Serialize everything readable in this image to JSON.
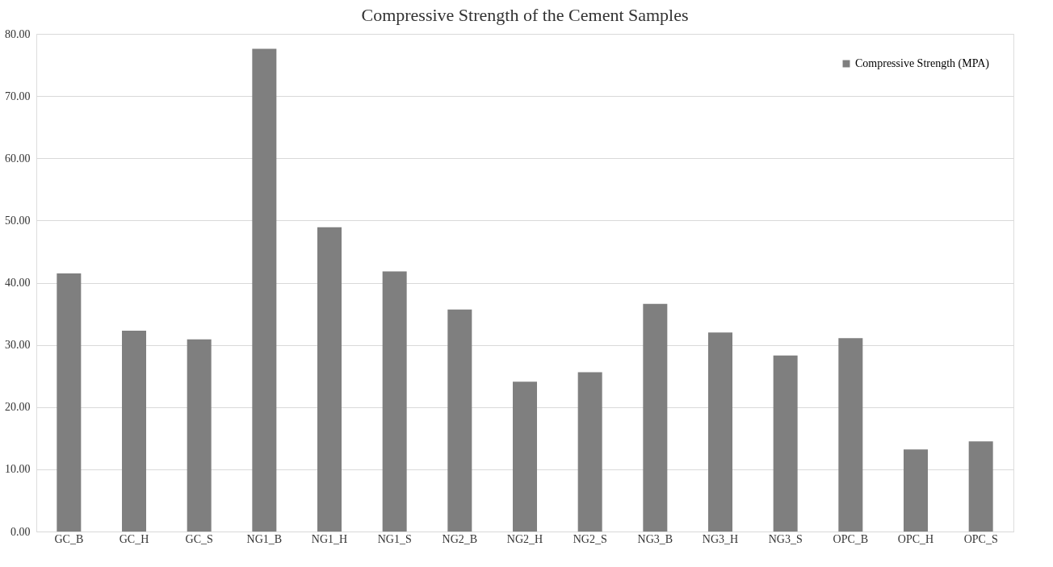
{
  "chart_data": {
    "type": "bar",
    "title": "Compressive Strength of the Cement Samples",
    "categories": [
      "GC_B",
      "GC_H",
      "GC_S",
      "NG1_B",
      "NG1_H",
      "NG1_S",
      "NG2_B",
      "NG2_H",
      "NG2_S",
      "NG3_B",
      "NG3_H",
      "NG3_S",
      "OPC_B",
      "OPC_H",
      "OPC_S"
    ],
    "series": [
      {
        "name": "Compressive Strength (MPA)",
        "color": "#7f7f7f",
        "values": [
          41.5,
          32.3,
          30.9,
          77.6,
          48.9,
          41.8,
          35.7,
          24.1,
          25.6,
          36.6,
          32.0,
          28.3,
          31.1,
          13.2,
          14.5
        ]
      }
    ],
    "ylim": [
      0,
      80
    ],
    "yticks": [
      {
        "value": 0,
        "label": "0.00"
      },
      {
        "value": 10,
        "label": "10.00"
      },
      {
        "value": 20,
        "label": "20.00"
      },
      {
        "value": 30,
        "label": "30.00"
      },
      {
        "value": 40,
        "label": "40.00"
      },
      {
        "value": 50,
        "label": "50.00"
      },
      {
        "value": 60,
        "label": "60.00"
      },
      {
        "value": 70,
        "label": "70.00"
      },
      {
        "value": 80,
        "label": "80.00"
      }
    ],
    "grid": "y",
    "legend": "top right"
  }
}
